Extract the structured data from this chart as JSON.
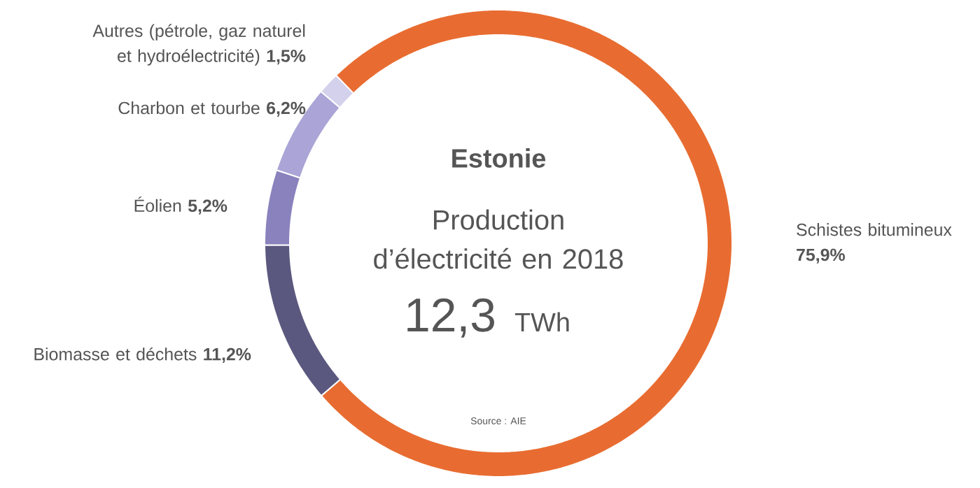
{
  "chart_data": {
    "type": "donut",
    "title": "Estonie",
    "subtitle": "Production d’électricité en 2018",
    "annotations": [
      "12,3",
      "TWh",
      "Source : AIE"
    ],
    "categories": [
      "Schistes bitumineux",
      "Biomasse et déchets",
      "Éolien",
      "Charbon et tourbe",
      "Autres (pétrole, gaz naturel et hydroélectricité)"
    ],
    "values": [
      75.9,
      11.2,
      5.2,
      6.2,
      1.5
    ],
    "value_labels": [
      "75,9%",
      "11,2%",
      "5,2%",
      "6,2%",
      "1,5%"
    ],
    "colors": [
      "#e86c31",
      "#5b587f",
      "#8a82bd",
      "#aaa5d6",
      "#d4d1ec"
    ]
  }
}
